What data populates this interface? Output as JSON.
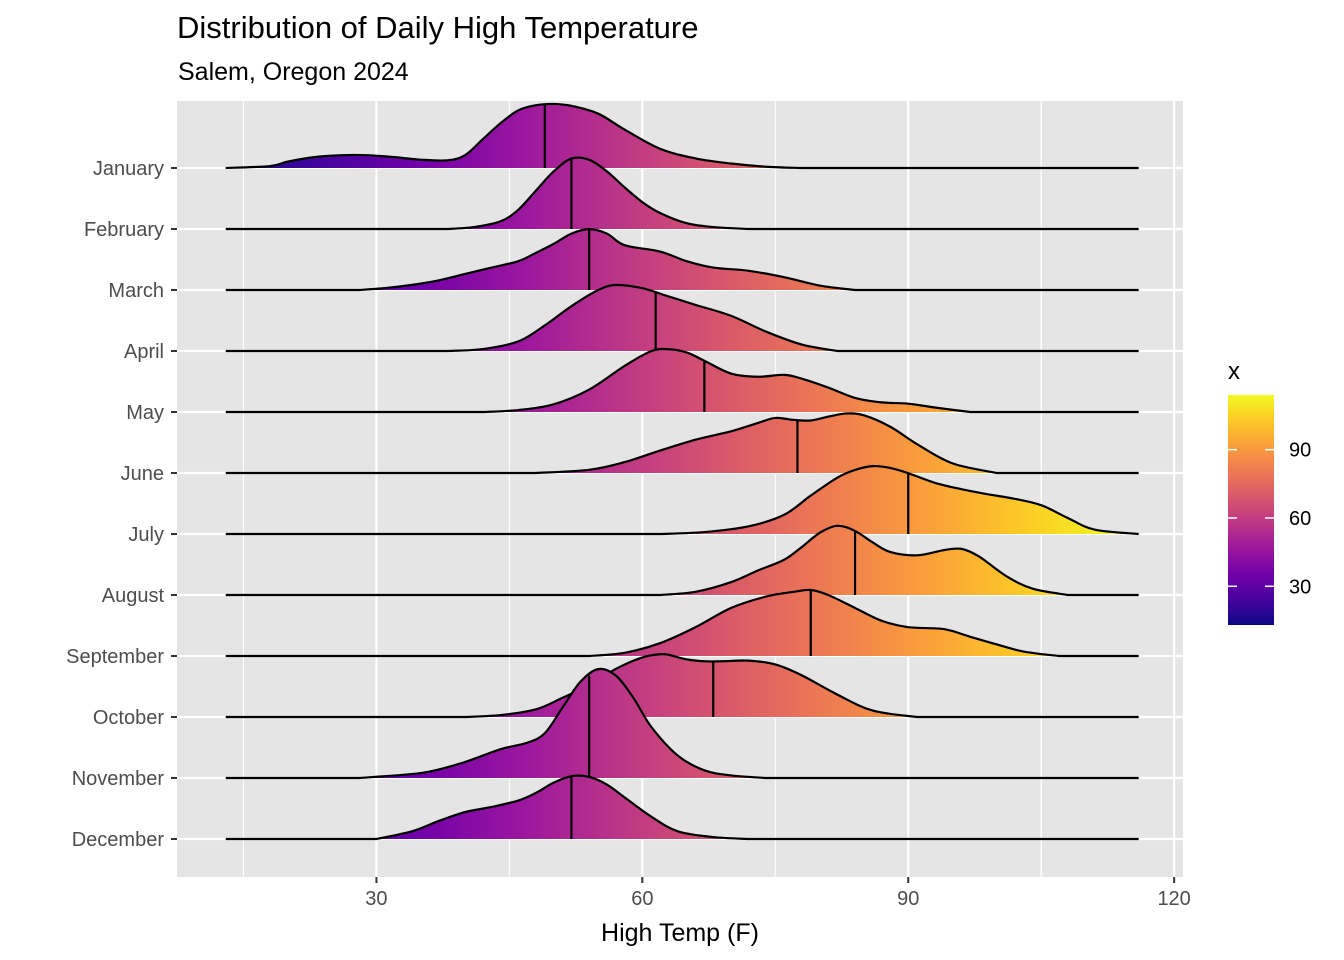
{
  "chart_data": {
    "type": "ridgeline",
    "title": "Distribution of Daily High Temperature",
    "subtitle": "Salem, Oregon 2024",
    "xlabel": "High Temp (F)",
    "ylabel": "",
    "xlim": [
      7.5,
      121
    ],
    "x_ticks": [
      30,
      60,
      90,
      120
    ],
    "grid": true,
    "legend": {
      "title": "x",
      "position": "right",
      "range": [
        13,
        114
      ],
      "ticks": [
        30,
        60,
        90
      ],
      "colors": [
        "#0d0887",
        "#47039f",
        "#7301a8",
        "#9c179e",
        "#bd3786",
        "#d8576b",
        "#ed7953",
        "#fa9e3b",
        "#fdc926",
        "#f0f921"
      ]
    },
    "ridge_x_range": [
      13,
      116
    ],
    "categories": [
      "January",
      "February",
      "March",
      "April",
      "May",
      "June",
      "July",
      "August",
      "September",
      "October",
      "November",
      "December"
    ],
    "medians": [
      49,
      52,
      54,
      61.5,
      67,
      77.5,
      90,
      84,
      79,
      68,
      54,
      52
    ],
    "series": [
      {
        "name": "January",
        "x": [
          13,
          18,
          20,
          23,
          26,
          29,
          32,
          35,
          38,
          40,
          42,
          44,
          46,
          48,
          50,
          52,
          55,
          58,
          62,
          66,
          70,
          74,
          78
        ],
        "y": [
          0,
          0.03,
          0.1,
          0.17,
          0.2,
          0.2,
          0.17,
          0.13,
          0.12,
          0.2,
          0.45,
          0.7,
          0.9,
          0.98,
          1,
          0.97,
          0.85,
          0.6,
          0.3,
          0.15,
          0.07,
          0.02,
          0
        ]
      },
      {
        "name": "February",
        "x": [
          38,
          41,
          44,
          46,
          48,
          50,
          52,
          54,
          56,
          58,
          60,
          62,
          65,
          68,
          72
        ],
        "y": [
          0,
          0.03,
          0.12,
          0.3,
          0.6,
          0.9,
          1.1,
          1.08,
          0.9,
          0.65,
          0.42,
          0.25,
          0.09,
          0.03,
          0
        ]
      },
      {
        "name": "March",
        "x": [
          28,
          31,
          34,
          37,
          40,
          43,
          46,
          48,
          50,
          52,
          54,
          56,
          58,
          62,
          65,
          68,
          72,
          76,
          80,
          84
        ],
        "y": [
          0,
          0.03,
          0.08,
          0.15,
          0.25,
          0.35,
          0.45,
          0.58,
          0.72,
          0.88,
          0.95,
          0.88,
          0.7,
          0.6,
          0.45,
          0.35,
          0.3,
          0.2,
          0.07,
          0
        ]
      },
      {
        "name": "April",
        "x": [
          38,
          42,
          46,
          49,
          52,
          55,
          57,
          60,
          63,
          66,
          70,
          74,
          78,
          82
        ],
        "y": [
          0,
          0.03,
          0.15,
          0.4,
          0.7,
          0.95,
          1.03,
          0.98,
          0.85,
          0.72,
          0.55,
          0.3,
          0.1,
          0
        ]
      },
      {
        "name": "May",
        "x": [
          42,
          46,
          50,
          54,
          58,
          61,
          63,
          65,
          67,
          70,
          73,
          76,
          78,
          81,
          84,
          87,
          90,
          93,
          97
        ],
        "y": [
          0,
          0.03,
          0.12,
          0.35,
          0.72,
          0.95,
          0.98,
          0.93,
          0.8,
          0.6,
          0.55,
          0.58,
          0.52,
          0.38,
          0.22,
          0.15,
          0.13,
          0.07,
          0
        ]
      },
      {
        "name": "June",
        "x": [
          48,
          54,
          58,
          62,
          66,
          70,
          73,
          75,
          77,
          79,
          81,
          83,
          85,
          88,
          91,
          95,
          100
        ],
        "y": [
          0,
          0.05,
          0.17,
          0.35,
          0.52,
          0.65,
          0.78,
          0.86,
          0.83,
          0.82,
          0.88,
          0.93,
          0.9,
          0.72,
          0.45,
          0.15,
          0
        ]
      },
      {
        "name": "July",
        "x": [
          62,
          67,
          72,
          76,
          79,
          82,
          84,
          86,
          88,
          90,
          93,
          96,
          99,
          102,
          105,
          108,
          111,
          116
        ],
        "y": [
          0,
          0.03,
          0.12,
          0.3,
          0.6,
          0.88,
          1.0,
          1.06,
          1.03,
          0.95,
          0.8,
          0.7,
          0.62,
          0.55,
          0.45,
          0.25,
          0.07,
          0
        ]
      },
      {
        "name": "August",
        "x": [
          62,
          66,
          70,
          73,
          76,
          78,
          80,
          82,
          84,
          86,
          88,
          91,
          94,
          96,
          98,
          101,
          104,
          108
        ],
        "y": [
          0,
          0.05,
          0.2,
          0.38,
          0.55,
          0.75,
          0.97,
          1.08,
          1.0,
          0.82,
          0.67,
          0.62,
          0.7,
          0.72,
          0.6,
          0.3,
          0.1,
          0
        ]
      },
      {
        "name": "September",
        "x": [
          54,
          58,
          62,
          66,
          70,
          74,
          77,
          79,
          81,
          84,
          87,
          90,
          94,
          97,
          100,
          103,
          107
        ],
        "y": [
          0,
          0.05,
          0.2,
          0.45,
          0.75,
          0.93,
          1.0,
          1.03,
          0.95,
          0.75,
          0.55,
          0.45,
          0.42,
          0.3,
          0.18,
          0.07,
          0
        ]
      },
      {
        "name": "October",
        "x": [
          40,
          44,
          48,
          51,
          54,
          57,
          60,
          62,
          63,
          65,
          67,
          69,
          72,
          75,
          78,
          82,
          86,
          91
        ],
        "y": [
          0,
          0.03,
          0.12,
          0.3,
          0.5,
          0.75,
          0.93,
          0.98,
          0.97,
          0.9,
          0.87,
          0.87,
          0.88,
          0.82,
          0.65,
          0.35,
          0.1,
          0
        ]
      },
      {
        "name": "November",
        "x": [
          28,
          33,
          36,
          40,
          44,
          47,
          49,
          51,
          53,
          55,
          57,
          59,
          61,
          64,
          67,
          70,
          74
        ],
        "y": [
          0,
          0.05,
          0.1,
          0.25,
          0.45,
          0.55,
          0.7,
          1.1,
          1.5,
          1.7,
          1.6,
          1.25,
          0.8,
          0.35,
          0.12,
          0.04,
          0
        ]
      },
      {
        "name": "December",
        "x": [
          30,
          34,
          37,
          40,
          43,
          46,
          48,
          50,
          52,
          54,
          56,
          58,
          61,
          64,
          68,
          72
        ],
        "y": [
          0,
          0.12,
          0.28,
          0.42,
          0.5,
          0.6,
          0.72,
          0.88,
          0.98,
          0.97,
          0.85,
          0.65,
          0.35,
          0.12,
          0.03,
          0
        ]
      }
    ]
  }
}
